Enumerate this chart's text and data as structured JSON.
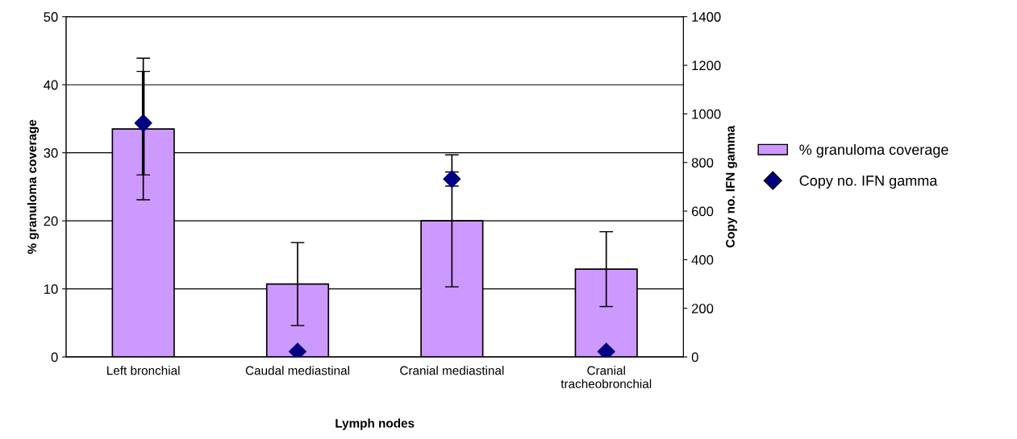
{
  "chart_data": {
    "type": "bar",
    "xlabel": "Lymph nodes",
    "ylabel": "% granuloma coverage",
    "y2label": "Copy no. IFN gamma",
    "categories": [
      "Left bronchial",
      "Caudal mediastinal",
      "Cranial mediastinal",
      "Cranial\ntracheobronchial"
    ],
    "series": [
      {
        "name": "% granuloma coverage",
        "color": "#cc99ff",
        "values": [
          33.5,
          10.7,
          20.0,
          12.9
        ],
        "errors": [
          10.4,
          6.1,
          9.7,
          5.5
        ]
      },
      {
        "name": "Copy no. IFN gamma",
        "type": "scatter",
        "axis": "y2",
        "color": "#000080",
        "marker": "diamond",
        "values": [
          962,
          22,
          732,
          22
        ],
        "errors": [
          213,
          null,
          29,
          null
        ]
      }
    ],
    "ylim": [
      0,
      50
    ],
    "yticks": [
      0,
      10,
      20,
      30,
      40,
      50
    ],
    "y2lim": [
      0,
      1400
    ],
    "y2ticks": [
      0,
      200,
      400,
      600,
      800,
      1000,
      1200,
      1400
    ],
    "grid": "y",
    "legend": "right"
  }
}
